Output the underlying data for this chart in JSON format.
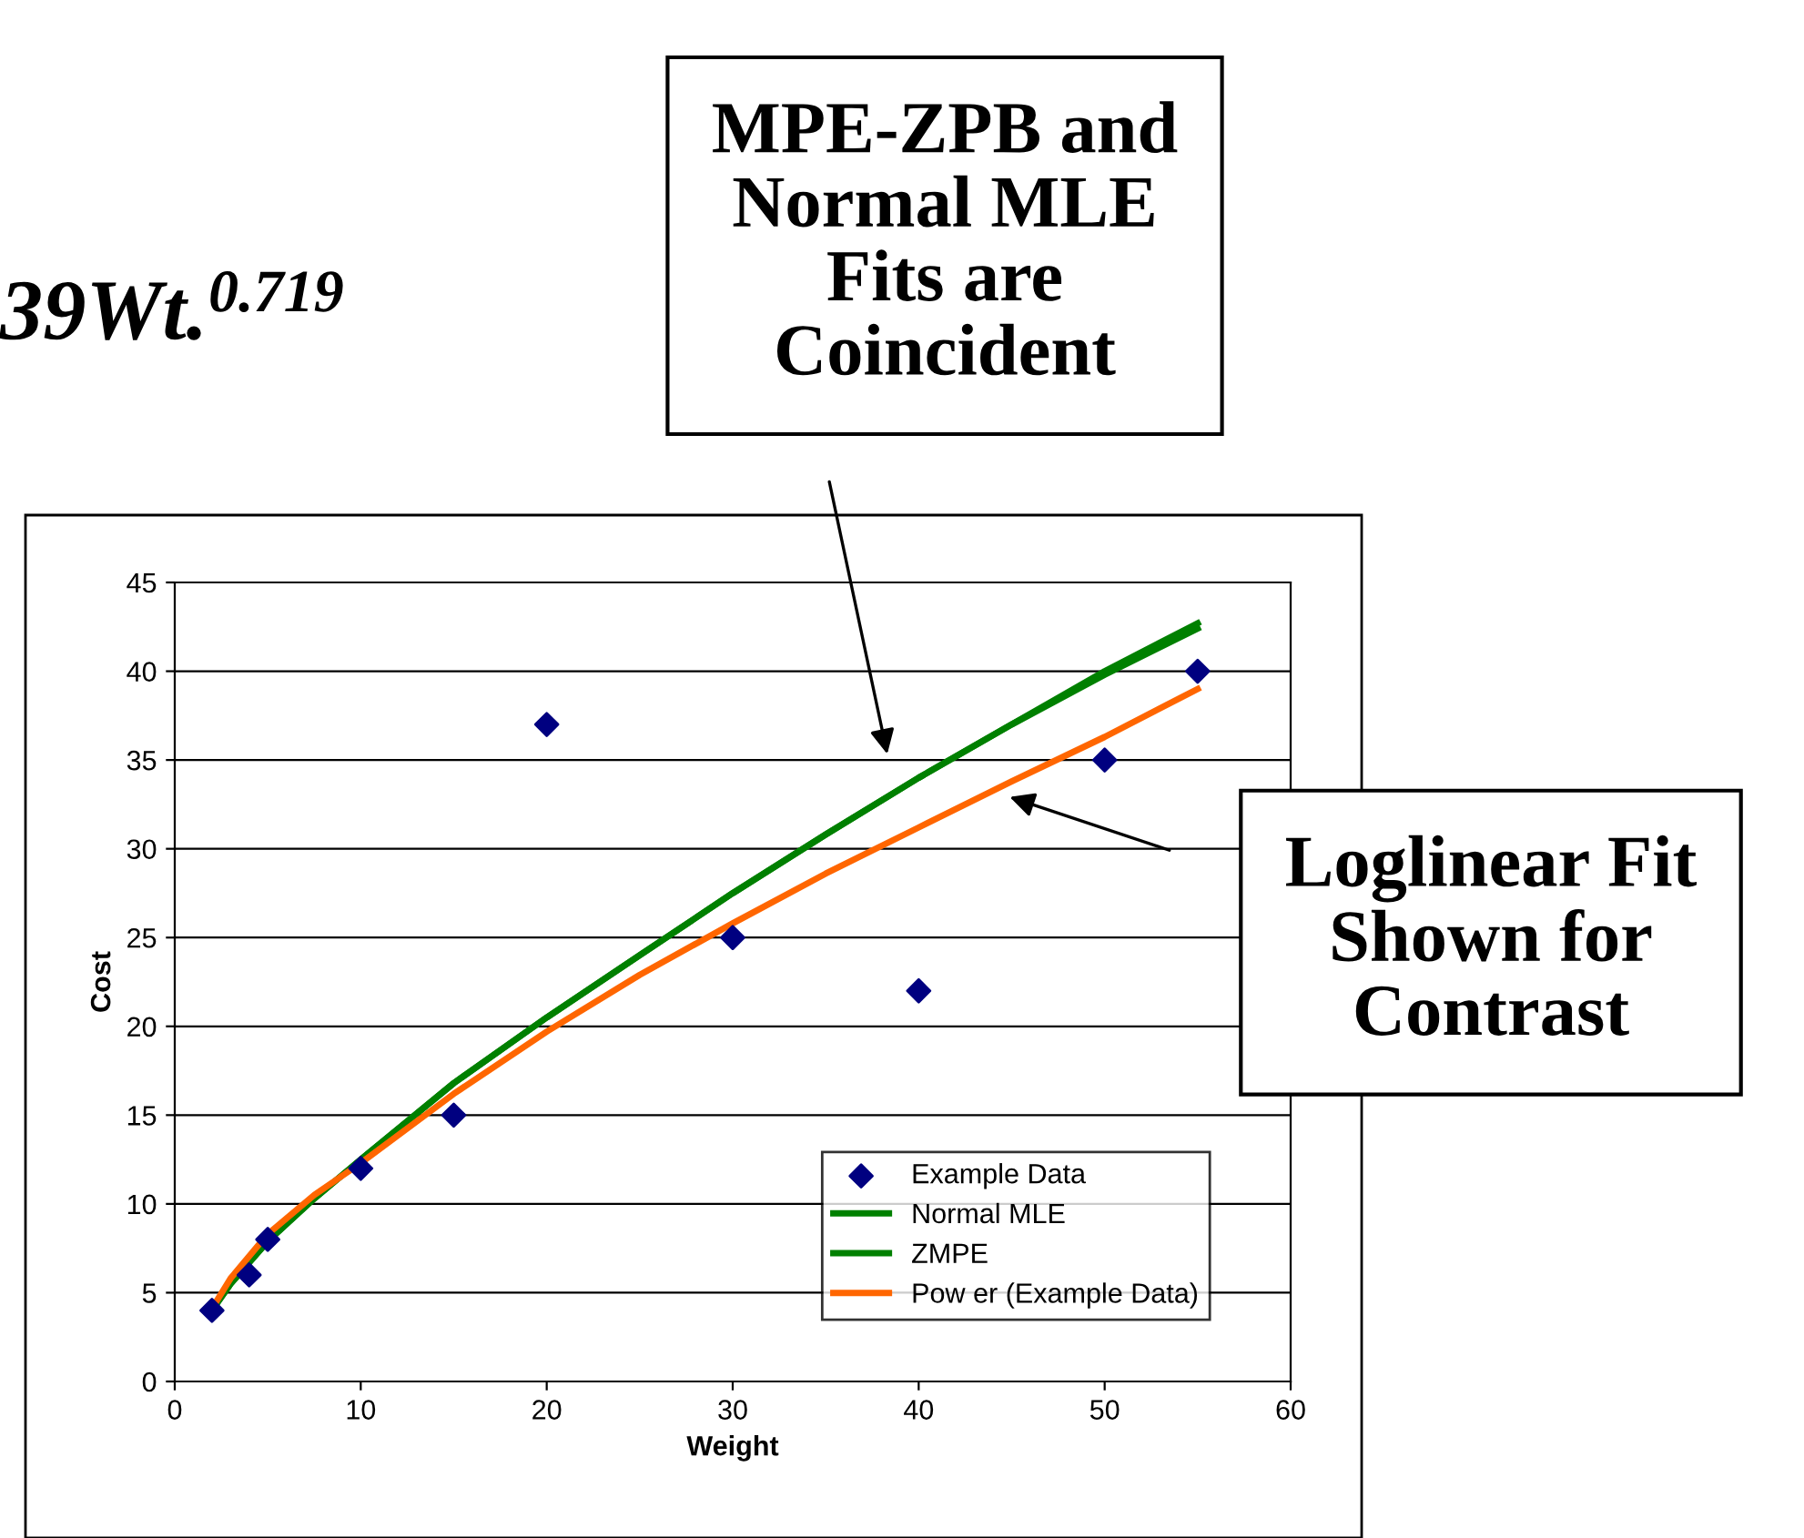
{
  "chart_data": {
    "type": "line",
    "xlabel": "Weight",
    "ylabel": "Cost",
    "xlim": [
      0,
      60
    ],
    "xticks": [
      0,
      10,
      20,
      30,
      40,
      50,
      60
    ],
    "ylim": [
      0,
      45
    ],
    "yticks": [
      0,
      5,
      10,
      15,
      20,
      25,
      30,
      35,
      40,
      45
    ],
    "grid": "y",
    "legend": "bottom right",
    "line_style": "solid",
    "series": [
      {
        "name": "Example Data",
        "type": "scatter",
        "marker": "diamond",
        "color": "#000080",
        "x": [
          2,
          4,
          5,
          10,
          15,
          20,
          30,
          40,
          50,
          55
        ],
        "values": [
          4,
          6,
          8,
          12,
          15,
          37,
          25,
          22,
          35,
          40
        ]
      },
      {
        "name": "Normal MLE",
        "marker": "none",
        "color": "#008000",
        "x": [
          2,
          3,
          5,
          7.5,
          10,
          15,
          20,
          25,
          30,
          35,
          40,
          45,
          50,
          55
        ],
        "values": [
          4,
          5.5,
          7.9,
          10.3,
          12.5,
          16.8,
          20.5,
          24,
          27.5,
          30.8,
          34,
          37,
          40,
          42.7
        ]
      },
      {
        "name": "ZMPE",
        "marker": "none",
        "color": "#008000",
        "x": [
          2,
          3,
          5,
          7.5,
          10,
          15,
          20,
          25,
          30,
          35,
          40,
          45,
          50,
          55
        ],
        "values": [
          4,
          5.5,
          7.9,
          10.3,
          12.5,
          16.8,
          20.5,
          24,
          27.5,
          30.8,
          34,
          37,
          39.8,
          42.4
        ]
      },
      {
        "name": "Pow er (Example Data)",
        "marker": "none",
        "color": "#ff6600",
        "x": [
          2,
          3,
          5,
          7.5,
          10,
          15,
          20,
          25,
          30,
          35,
          40,
          45,
          50,
          55
        ],
        "values": [
          4.1,
          5.8,
          8.3,
          10.5,
          12.3,
          16.2,
          19.7,
          22.9,
          25.8,
          28.6,
          31.2,
          33.8,
          36.3,
          39
        ]
      }
    ],
    "annotations": [
      "39Wt.$^{0.719}$",
      "MPE-ZPB and\nNormal MLE\nFits are\nCoincident",
      "Loglinear Fit\nShown for\nContrast"
    ]
  }
}
